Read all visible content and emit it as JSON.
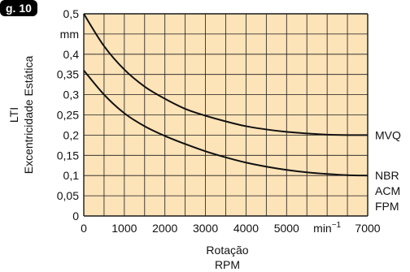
{
  "figure_tag": "g. 10",
  "chart_data": {
    "type": "line",
    "xlabel": "Rotação",
    "xlabel2": "RPM",
    "ylabel": "Excentricidade Estática",
    "ylabel2": "LTI",
    "xlim": [
      0,
      7000
    ],
    "ylim": [
      0,
      0.5
    ],
    "x_ticks": [
      {
        "value": 0,
        "label": "0"
      },
      {
        "value": 1000,
        "label": "1000"
      },
      {
        "value": 2000,
        "label": "2000"
      },
      {
        "value": 3000,
        "label": "3000"
      },
      {
        "value": 4000,
        "label": "4000"
      },
      {
        "value": 5000,
        "label": "5000"
      },
      {
        "value": 7000,
        "label": "7000"
      }
    ],
    "x_unit_label": "min",
    "x_unit_exp": "−1",
    "y_ticks": [
      {
        "value": 0,
        "label": "0"
      },
      {
        "value": 0.05,
        "label": "0,05"
      },
      {
        "value": 0.1,
        "label": "0,1"
      },
      {
        "value": 0.15,
        "label": "0,15"
      },
      {
        "value": 0.2,
        "label": "0,2"
      },
      {
        "value": 0.25,
        "label": "0,25"
      },
      {
        "value": 0.3,
        "label": "0,3"
      },
      {
        "value": 0.35,
        "label": "0,35"
      },
      {
        "value": 0.4,
        "label": "0,4"
      },
      {
        "value": 0.5,
        "label": "0,5"
      }
    ],
    "y_unit_label": "mm",
    "grid": true,
    "series": [
      {
        "name": "MVQ",
        "labels": [
          "MVQ"
        ],
        "x": [
          0,
          500,
          1000,
          1500,
          2000,
          2500,
          3000,
          3500,
          4000,
          4500,
          5000,
          5500,
          6000,
          6500,
          7000
        ],
        "y": [
          0.5,
          0.42,
          0.362,
          0.32,
          0.29,
          0.265,
          0.248,
          0.234,
          0.222,
          0.214,
          0.208,
          0.204,
          0.201,
          0.2,
          0.2
        ]
      },
      {
        "name": "NBR ACM FPM",
        "labels": [
          "NBR",
          "ACM",
          "FPM"
        ],
        "x": [
          0,
          500,
          1000,
          1500,
          2000,
          2500,
          3000,
          3500,
          4000,
          4500,
          5000,
          5500,
          6000,
          6500,
          7000
        ],
        "y": [
          0.36,
          0.3,
          0.254,
          0.222,
          0.198,
          0.178,
          0.16,
          0.145,
          0.132,
          0.122,
          0.114,
          0.108,
          0.104,
          0.101,
          0.1
        ]
      }
    ],
    "colors": {
      "plot_bg": "#fde3b8",
      "grid": "#1a1a1a",
      "line": "#111111",
      "tag_bg": "#000000"
    }
  }
}
